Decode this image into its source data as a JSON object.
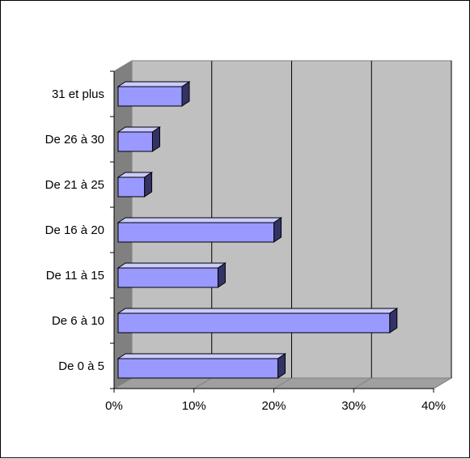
{
  "chart_data": {
    "type": "bar",
    "orientation": "horizontal",
    "style": "3d",
    "categories": [
      "De 0 à 5",
      "De 6 à 10",
      "De 11 à 15",
      "De 16 à 20",
      "De 21 à 25",
      "De 26 à 30",
      "31 et plus"
    ],
    "values": [
      20,
      34,
      12.5,
      19.5,
      3.3,
      4.3,
      8
    ],
    "xlim": [
      0,
      40
    ],
    "x_ticks": [
      "0%",
      "10%",
      "20%",
      "30%",
      "40%"
    ],
    "grid": true,
    "legend": "none",
    "title": "",
    "xlabel": "",
    "ylabel": "",
    "colors": {
      "bar_front": "#9999ff",
      "bar_top": "#ccccff",
      "bar_side": "#333366",
      "bar_edge": "#000000",
      "plot_wall": "#c0c0c0",
      "side_wall": "#808080",
      "floor": "#a0a0a0",
      "gridline": "#000000"
    }
  }
}
